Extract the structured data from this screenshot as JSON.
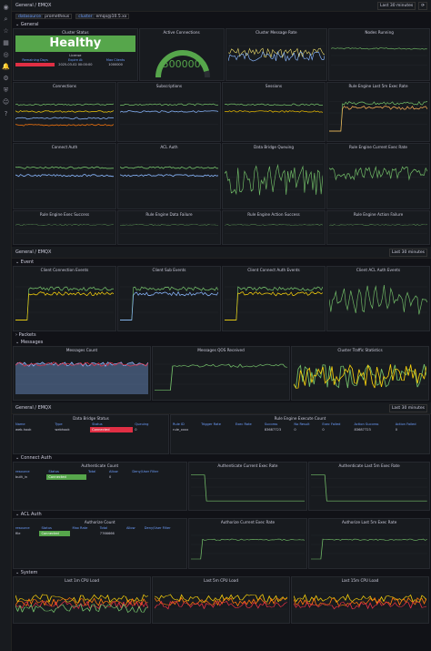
{
  "sidebar": {
    "icons": [
      "grafana-logo-icon",
      "search-icon",
      "star-icon",
      "dashboards-icon",
      "explore-icon",
      "alerting-icon",
      "settings-icon",
      "shield-icon",
      "user-icon",
      "help-icon"
    ]
  },
  "header": {
    "title": "General / EMQX",
    "time_range": "Last 30 minutes",
    "utc": "UTC"
  },
  "vars": [
    {
      "k": "datasource",
      "v": "prometheus"
    },
    {
      "k": "cluster",
      "v": "emqx@10.5.xx"
    }
  ],
  "sections": {
    "general": "General",
    "event": "Event",
    "packets": "Packets",
    "messages": "Messages",
    "connect_auth": "Connect Auth",
    "acl_auth": "ACL Auth",
    "system": "System"
  },
  "status": {
    "title": "Cluster Status",
    "value": "Healthy",
    "license": "License",
    "lic_headers": [
      "Remaining Days",
      "Expire At",
      "Max Clients"
    ],
    "lic_values": [
      "",
      "2025-03-02 00:00:00",
      "1000000"
    ]
  },
  "gauge": {
    "title": "Active Connections",
    "value": "500000",
    "fraction": 0.92
  },
  "panels1": [
    "Cluster Message Rate",
    "Nodes Running"
  ],
  "panels2": [
    "Connections",
    "Subscriptions",
    "Sessions",
    "Rule Engine Last 5m Exec Rate"
  ],
  "panels3": [
    "Connect Auth",
    "ACL Auth",
    "Data Bridge Queuing",
    "Rule Engine Current Exec Rate"
  ],
  "panels4": [
    "Rule Engine Exec Success",
    "Rule Engine Data Failure",
    "Rule Engine Action Success",
    "Rule Engine Action Failure"
  ],
  "event_panels": [
    "Client Connection Events",
    "Client Sub Events",
    "Client Connect Auth Events",
    "Client ACL Auth Events"
  ],
  "msg_panels": [
    "Messages Count",
    "Messages QOS Received",
    "Cluster Traffic Statistics"
  ],
  "bridge": {
    "title": "Data Bridge Status",
    "headers": [
      "Name",
      "Type",
      "Status",
      "Queuing"
    ],
    "rows": [
      [
        "web-hook",
        "webhook",
        "Connected",
        "0"
      ]
    ]
  },
  "rule": {
    "title": "Rule Engine Execute Count",
    "headers": [
      "Rule ID",
      "Trigger Rate",
      "Exec Rate",
      "Success",
      "No Result",
      "Exec Failed",
      "Action Success",
      "Action Failed"
    ],
    "rows": [
      [
        "rule_xxxx",
        "",
        "",
        "83687723",
        "0",
        "0",
        "83687723",
        "0"
      ]
    ]
  },
  "auth_count": {
    "title": "Authenticate Count",
    "headers": [
      "resource",
      "Status",
      "Total",
      "Allow",
      "Deny/User Filter"
    ],
    "rows": [
      [
        "built_in",
        "Connected",
        "",
        "0",
        ""
      ]
    ]
  },
  "auth_panels": [
    "Authenticate Current Exec Rate",
    "Authenticate Last 5m Exec Rate"
  ],
  "authz_count": {
    "title": "Authorize Count",
    "headers": [
      "resource",
      "Status",
      "Max Rate",
      "Total",
      "Allow",
      "Deny/User Filter"
    ],
    "rows": [
      [
        "file",
        "Connected",
        "",
        "7766666",
        ""
      ]
    ]
  },
  "authz_panels": [
    "Authorize Current Exec Rate",
    "Authorize Last 5m Exec Rate"
  ],
  "system": [
    "Last 1m CPU Load",
    "Last 5m CPU Load",
    "Last 15m CPU Load"
  ]
}
